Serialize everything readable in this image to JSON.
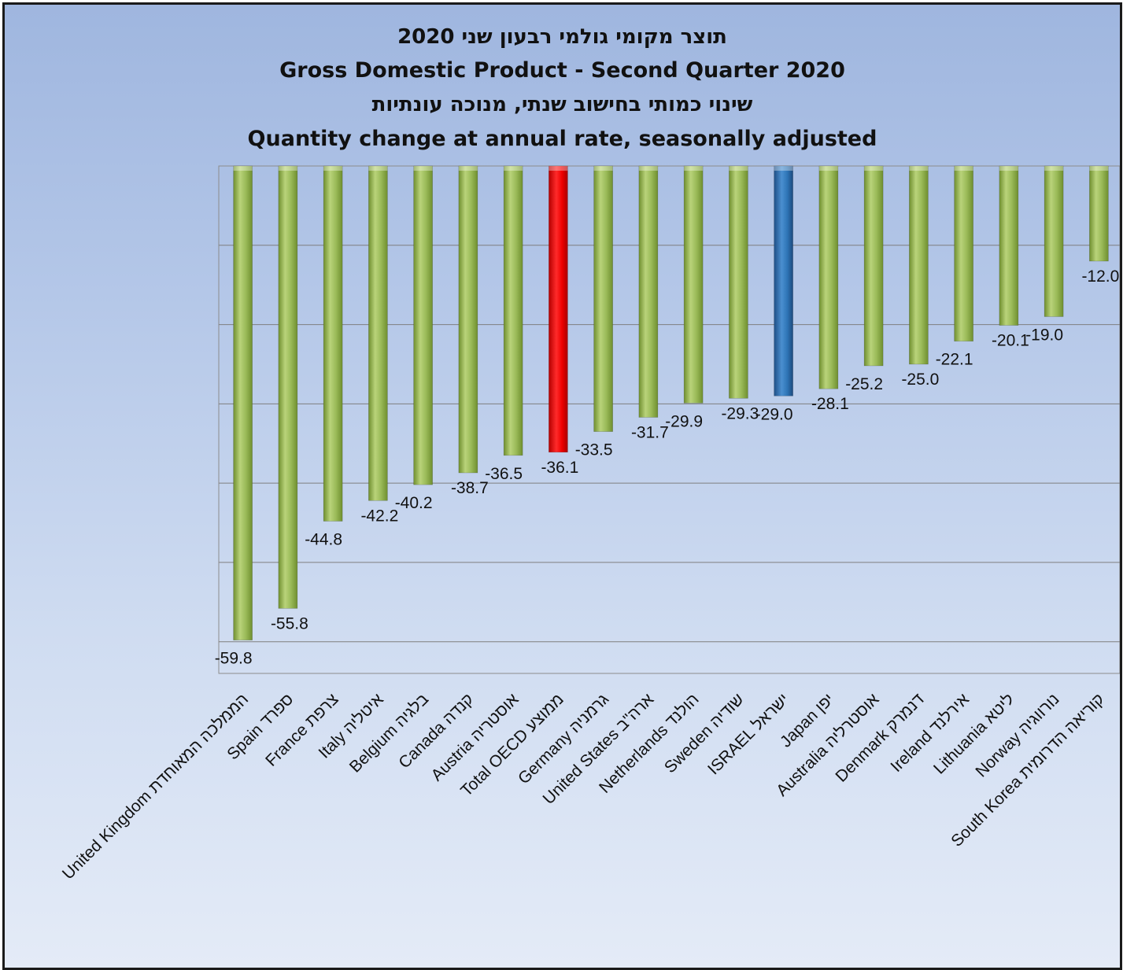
{
  "chart_data": {
    "type": "bar",
    "title_lines": [
      "תוצר מקומי גולמי רבעון שני 2020",
      "Gross Domestic Product - Second Quarter 2020",
      "שינוי כמותי בחישוב שנתי, מנוכה עונתיות",
      "Quantity change at annual rate, seasonally adjusted"
    ],
    "categories": [
      "United Kingdom הממלכה המאוחדת",
      "Spain ספרד",
      "France צרפת",
      "Italy איטליה",
      "Belgium בלגיה",
      "Canada קנדה",
      "Austria אוסטריה",
      "Total OECD ממוצע",
      "Germany גרמניה",
      "United States ארה\"ב",
      "Netherlands הולנד",
      "Sweden שודיה",
      "ISRAEL ישראל",
      "Japan יפן",
      "Australia אוסטרליה",
      "Denmark דנמרק",
      "Ireland אירלנד",
      "Lithuania ליטא",
      "Norway נורווגיה",
      "South Korea קוריאה הדרומית"
    ],
    "values": [
      -59.8,
      -55.8,
      -44.8,
      -42.2,
      -40.2,
      -38.7,
      -36.5,
      -36.1,
      -33.5,
      -31.7,
      -29.9,
      -29.3,
      -29.0,
      -28.1,
      -25.2,
      -25.0,
      -22.1,
      -20.1,
      -19.0,
      -12.0
    ],
    "data_labels": [
      "-59.8",
      "-55.8",
      "-44.8",
      "-42.2",
      "-40.2",
      "-38.7",
      "-36.5",
      "-36.1",
      "-33.5",
      "-31.7",
      "-29.9",
      "-29.3",
      "-29.0",
      "-28.1",
      "-25.2",
      "-25.0",
      "-22.1",
      "-20.1",
      "-19.0",
      "-12.0"
    ],
    "highlight": {
      "Total OECD ממוצע": "#ff0000",
      "ISRAEL ישראל": "#2e75b6"
    },
    "default_color": "#9bbb59",
    "ylim": [
      -64,
      0
    ],
    "gridlines": true,
    "xlabel": "",
    "ylabel": ""
  }
}
